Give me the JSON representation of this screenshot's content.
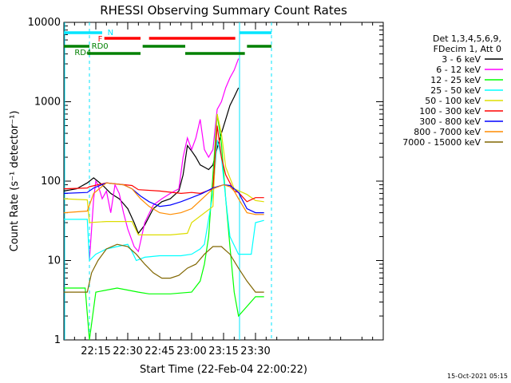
{
  "chart_data": {
    "type": "line",
    "title": "RHESSI Observing Summary Count Rates",
    "xlabel": "Start Time (22-Feb-04 22:00:22)",
    "ylabel": "Count Rate (s⁻¹ detector⁻¹)",
    "yscale": "log",
    "ylim": [
      1,
      10000
    ],
    "xlim_min": [
      0,
      150
    ],
    "x_ticks": [
      {
        "label": "22:15",
        "x": 15
      },
      {
        "label": "22:30",
        "x": 30
      },
      {
        "label": "22:45",
        "x": 45
      },
      {
        "label": "23:00",
        "x": 60
      },
      {
        "label": "23:15",
        "x": 75
      },
      {
        "label": "23:30",
        "x": 90
      }
    ],
    "y_ticks": [
      {
        "label": "1",
        "y": 1
      },
      {
        "label": "10",
        "y": 10
      },
      {
        "label": "100",
        "y": 100
      },
      {
        "label": "1000",
        "y": 1000
      },
      {
        "label": "10000",
        "y": 10000
      }
    ],
    "legend_header": [
      "Det 1,3,4,5,6,9,",
      "FDecim 1, Att 0"
    ],
    "legend_position": "right",
    "series": [
      {
        "name": "3 - 6 keV",
        "color": "#000000",
        "points": [
          [
            0,
            75
          ],
          [
            6,
            80
          ],
          [
            11,
            95
          ],
          [
            14,
            110
          ],
          [
            18,
            90
          ],
          [
            22,
            70
          ],
          [
            26,
            60
          ],
          [
            30,
            45
          ],
          [
            33,
            30
          ],
          [
            35,
            22
          ],
          [
            38,
            28
          ],
          [
            42,
            45
          ],
          [
            46,
            55
          ],
          [
            50,
            60
          ],
          [
            54,
            75
          ],
          [
            56,
            120
          ],
          [
            58,
            280
          ],
          [
            60,
            240
          ],
          [
            62,
            200
          ],
          [
            64,
            160
          ],
          [
            66,
            150
          ],
          [
            68,
            140
          ],
          [
            70,
            160
          ],
          [
            72,
            260
          ],
          [
            74,
            400
          ],
          [
            76,
            600
          ],
          [
            78,
            900
          ],
          [
            80,
            1150
          ],
          [
            82,
            1500
          ]
        ]
      },
      {
        "name": "6 - 12 keV",
        "color": "#ff00ff",
        "points": [
          [
            12,
            10
          ],
          [
            14,
            60
          ],
          [
            15,
            100
          ],
          [
            16,
            90
          ],
          [
            18,
            60
          ],
          [
            20,
            75
          ],
          [
            22,
            40
          ],
          [
            24,
            90
          ],
          [
            26,
            70
          ],
          [
            28,
            40
          ],
          [
            30,
            25
          ],
          [
            33,
            15
          ],
          [
            35,
            13
          ],
          [
            38,
            30
          ],
          [
            42,
            50
          ],
          [
            46,
            60
          ],
          [
            50,
            70
          ],
          [
            54,
            80
          ],
          [
            56,
            200
          ],
          [
            58,
            350
          ],
          [
            60,
            250
          ],
          [
            62,
            350
          ],
          [
            64,
            600
          ],
          [
            66,
            250
          ],
          [
            68,
            200
          ],
          [
            70,
            250
          ],
          [
            72,
            800
          ],
          [
            74,
            1000
          ],
          [
            76,
            1500
          ],
          [
            78,
            2000
          ],
          [
            80,
            2500
          ],
          [
            82,
            3500
          ]
        ]
      },
      {
        "name": "12 - 25 keV",
        "color": "#00ff00",
        "points": [
          [
            0,
            4.5
          ],
          [
            10,
            4.5
          ],
          [
            12,
            1
          ],
          [
            15,
            4
          ],
          [
            25,
            4.5
          ],
          [
            35,
            4
          ],
          [
            40,
            3.8
          ],
          [
            50,
            3.8
          ],
          [
            60,
            4
          ],
          [
            64,
            5.5
          ],
          [
            66,
            9
          ],
          [
            68,
            20
          ],
          [
            70,
            120
          ],
          [
            72,
            700
          ],
          [
            74,
            300
          ],
          [
            76,
            60
          ],
          [
            78,
            15
          ],
          [
            80,
            4
          ],
          [
            82,
            2
          ],
          [
            90,
            3.5
          ],
          [
            94,
            3.5
          ]
        ]
      },
      {
        "name": "25 - 50 keV",
        "color": "#00ffff",
        "points": [
          [
            0,
            33
          ],
          [
            11,
            33
          ],
          [
            12,
            10
          ],
          [
            15,
            12
          ],
          [
            20,
            14
          ],
          [
            25,
            15
          ],
          [
            30,
            16
          ],
          [
            32,
            13
          ],
          [
            34,
            10
          ],
          [
            38,
            11
          ],
          [
            45,
            11.5
          ],
          [
            55,
            11.5
          ],
          [
            60,
            12
          ],
          [
            64,
            14
          ],
          [
            66,
            16
          ],
          [
            70,
            70
          ],
          [
            72,
            330
          ],
          [
            74,
            200
          ],
          [
            76,
            60
          ],
          [
            78,
            20
          ],
          [
            82,
            12
          ],
          [
            88,
            12
          ],
          [
            90,
            30
          ],
          [
            94,
            32
          ]
        ]
      },
      {
        "name": "50 - 100 keV",
        "color": "#dddd00",
        "points": [
          [
            0,
            60
          ],
          [
            11,
            58
          ],
          [
            12,
            30
          ],
          [
            20,
            31
          ],
          [
            32,
            31
          ],
          [
            35,
            21
          ],
          [
            45,
            21
          ],
          [
            50,
            21
          ],
          [
            58,
            22
          ],
          [
            60,
            30
          ],
          [
            70,
            48
          ],
          [
            72,
            700
          ],
          [
            74,
            400
          ],
          [
            76,
            150
          ],
          [
            80,
            80
          ],
          [
            86,
            68
          ],
          [
            90,
            57
          ],
          [
            94,
            55
          ]
        ]
      },
      {
        "name": "100 - 300 keV",
        "color": "#ff0000",
        "points": [
          [
            0,
            80
          ],
          [
            11,
            82
          ],
          [
            12,
            85
          ],
          [
            20,
            95
          ],
          [
            32,
            88
          ],
          [
            35,
            78
          ],
          [
            45,
            75
          ],
          [
            55,
            70
          ],
          [
            60,
            72
          ],
          [
            64,
            70
          ],
          [
            70,
            80
          ],
          [
            72,
            500
          ],
          [
            74,
            200
          ],
          [
            76,
            120
          ],
          [
            80,
            75
          ],
          [
            82,
            72
          ],
          [
            86,
            55
          ],
          [
            90,
            62
          ],
          [
            94,
            62
          ]
        ]
      },
      {
        "name": "300 - 800 keV",
        "color": "#0000ff",
        "points": [
          [
            0,
            70
          ],
          [
            11,
            72
          ],
          [
            14,
            82
          ],
          [
            20,
            95
          ],
          [
            28,
            90
          ],
          [
            32,
            80
          ],
          [
            36,
            65
          ],
          [
            40,
            55
          ],
          [
            45,
            48
          ],
          [
            50,
            50
          ],
          [
            55,
            55
          ],
          [
            60,
            62
          ],
          [
            65,
            70
          ],
          [
            70,
            82
          ],
          [
            75,
            90
          ],
          [
            78,
            88
          ],
          [
            80,
            80
          ],
          [
            82,
            72
          ],
          [
            86,
            45
          ],
          [
            90,
            40
          ],
          [
            94,
            40
          ]
        ]
      },
      {
        "name": "800 - 7000 keV",
        "color": "#ff8c00",
        "points": [
          [
            0,
            40
          ],
          [
            11,
            42
          ],
          [
            14,
            70
          ],
          [
            20,
            95
          ],
          [
            28,
            90
          ],
          [
            32,
            80
          ],
          [
            36,
            60
          ],
          [
            40,
            48
          ],
          [
            45,
            40
          ],
          [
            50,
            38
          ],
          [
            55,
            40
          ],
          [
            60,
            45
          ],
          [
            65,
            60
          ],
          [
            70,
            80
          ],
          [
            75,
            90
          ],
          [
            78,
            85
          ],
          [
            80,
            75
          ],
          [
            82,
            60
          ],
          [
            86,
            40
          ],
          [
            90,
            38
          ],
          [
            94,
            38
          ]
        ]
      },
      {
        "name": "7000 - 15000 keV",
        "color": "#806600",
        "points": [
          [
            0,
            4
          ],
          [
            11,
            4
          ],
          [
            13,
            7
          ],
          [
            16,
            10
          ],
          [
            20,
            14
          ],
          [
            25,
            16
          ],
          [
            30,
            15
          ],
          [
            34,
            12
          ],
          [
            38,
            9
          ],
          [
            42,
            7
          ],
          [
            46,
            6
          ],
          [
            50,
            6
          ],
          [
            54,
            6.5
          ],
          [
            58,
            8
          ],
          [
            62,
            9
          ],
          [
            66,
            12
          ],
          [
            70,
            15
          ],
          [
            74,
            15
          ],
          [
            78,
            12
          ],
          [
            82,
            8
          ],
          [
            86,
            5.5
          ],
          [
            90,
            4
          ],
          [
            94,
            4
          ]
        ]
      }
    ],
    "annotations": [
      {
        "label": "N",
        "color": "#00e5ff"
      },
      {
        "label": "F",
        "color": "#ff0000"
      },
      {
        "label": "RD0",
        "color": "#008000"
      },
      {
        "label": "RD4",
        "color": "#008000"
      }
    ],
    "footer_timestamp": "15-Oct-2021 05:15"
  }
}
